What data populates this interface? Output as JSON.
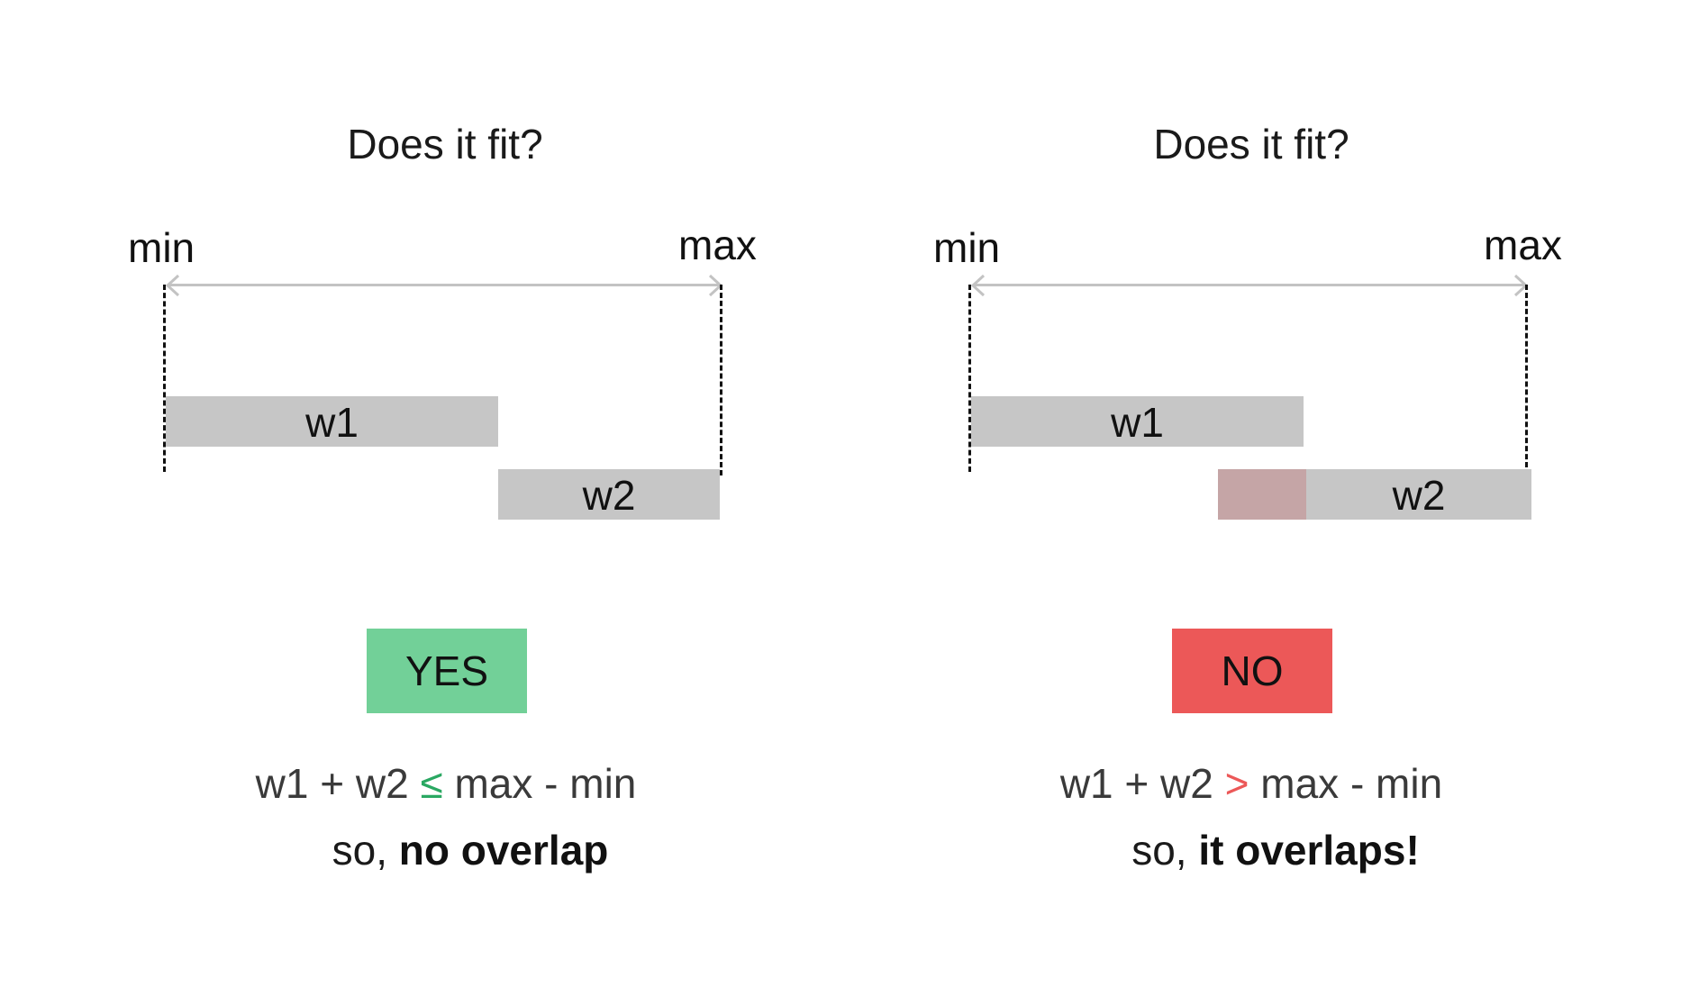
{
  "left": {
    "title": "Does it fit?",
    "min_label": "min",
    "max_label": "max",
    "w1_label": "w1",
    "w2_label": "w2",
    "verdict": "YES",
    "formula": {
      "lhs": "w1 + w2",
      "op": "≤",
      "rhs": "max - min"
    },
    "conclusion": {
      "prefix": "so,",
      "emphasis": "no overlap"
    }
  },
  "right": {
    "title": "Does it fit?",
    "min_label": "min",
    "max_label": "max",
    "w1_label": "w1",
    "w2_label": "w2",
    "verdict": "NO",
    "formula": {
      "lhs": "w1 + w2",
      "op": ">",
      "rhs": "max - min"
    },
    "conclusion": {
      "prefix": "so,",
      "emphasis": "it overlaps!"
    }
  },
  "colors": {
    "bar": "#c6c6c6",
    "overlap": "#c5a5a6",
    "yes": "#72d098",
    "no": "#ec5858",
    "op_le": "#2aa862",
    "op_gt": "#ec5858",
    "range_line": "#c3c3c3"
  }
}
